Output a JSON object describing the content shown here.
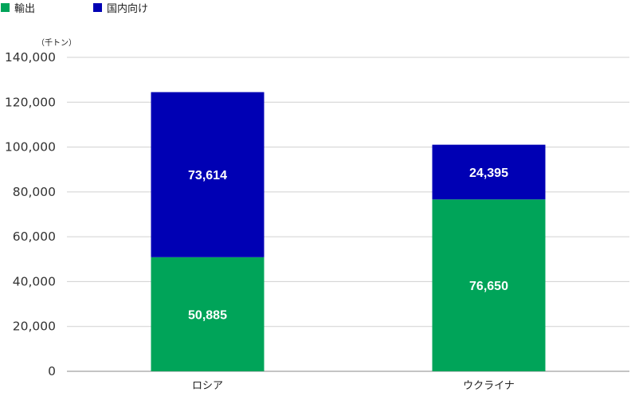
{
  "legend": [
    {
      "label": "輸出",
      "color": "#00a459"
    },
    {
      "label": "国内向け",
      "color": "#0000b4"
    }
  ],
  "chart_data": {
    "type": "bar",
    "stacked": true,
    "categories": [
      "ロシア",
      "ウクライナ"
    ],
    "series": [
      {
        "name": "輸出",
        "values": [
          50885,
          76650
        ],
        "color": "#00a459"
      },
      {
        "name": "国内向け",
        "values": [
          73614,
          24395
        ],
        "color": "#0000b4"
      }
    ],
    "ylabel": "（千トン）",
    "ylim": [
      0,
      140000
    ],
    "yticks": [
      0,
      20000,
      40000,
      60000,
      80000,
      100000,
      120000,
      140000
    ],
    "ytick_labels": [
      "0",
      "20,000",
      "40,000",
      "60,000",
      "80,000",
      "100,000",
      "120,000",
      "140,000"
    ],
    "data_labels": [
      [
        "50,885",
        "76,650"
      ],
      [
        "73,614",
        "24,395"
      ]
    ],
    "grid": true,
    "legend_position": "top-left"
  }
}
